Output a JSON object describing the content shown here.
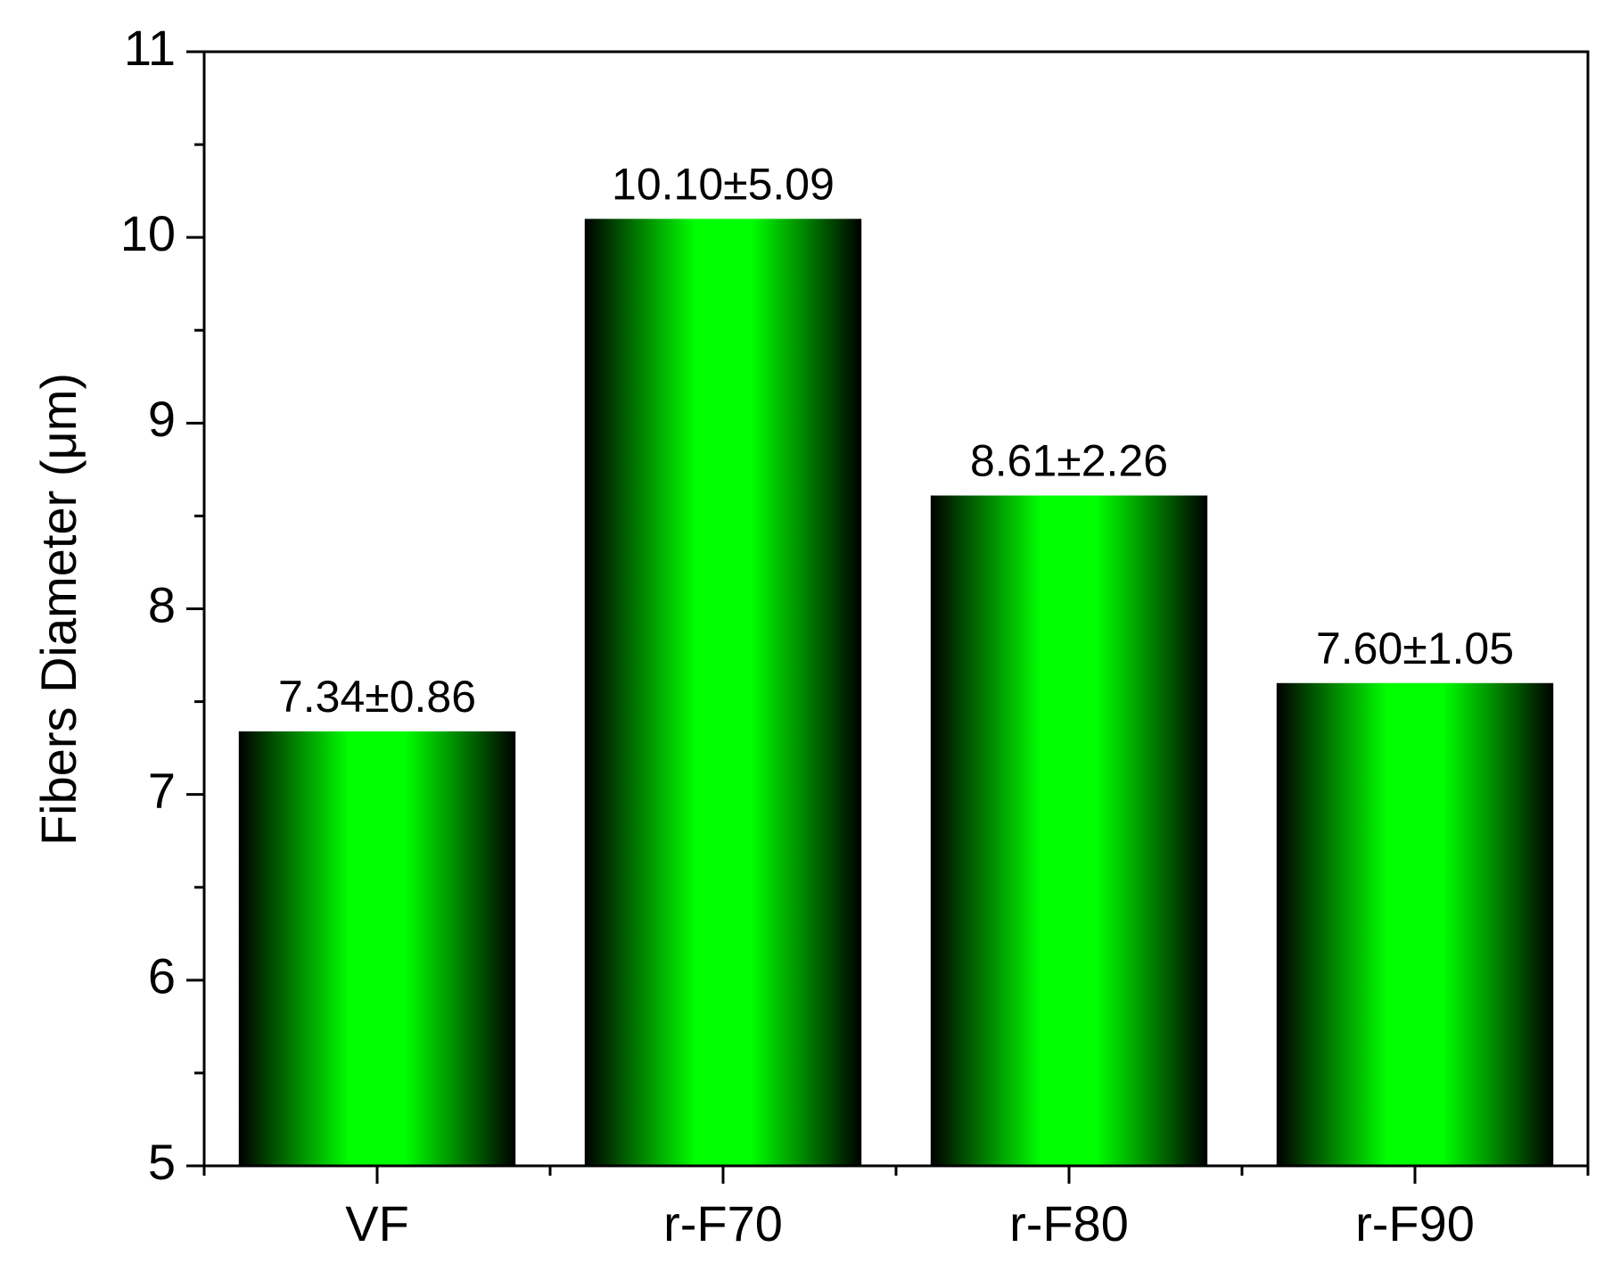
{
  "chart_data": {
    "type": "bar",
    "y_label": "Fibers Diameter (μm)",
    "categories": [
      "VF",
      "r-F70",
      "r-F80",
      "r-F90"
    ],
    "values": [
      7.34,
      10.1,
      8.61,
      7.6
    ],
    "value_labels": [
      "7.34±0.86",
      "10.10±5.09",
      "8.61±2.26",
      "7.60±1.05"
    ],
    "color": "#00ff00",
    "ylim": [
      5,
      11
    ],
    "yticks": [
      5,
      6,
      7,
      8,
      9,
      10,
      11
    ],
    "grid": false
  }
}
